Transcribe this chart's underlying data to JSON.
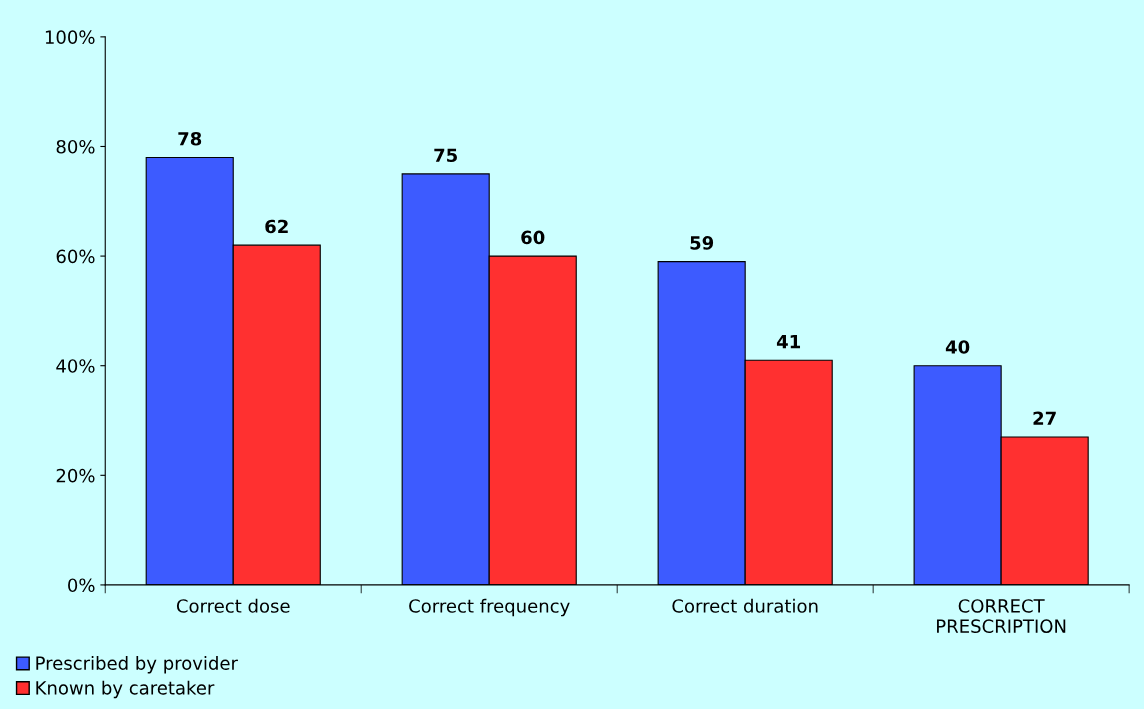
{
  "chart_data": {
    "type": "bar",
    "categories": [
      "Correct dose",
      "Correct frequency",
      "Correct duration",
      "CORRECT\nPRESCRIPTION"
    ],
    "series": [
      {
        "name": "Prescribed by provider",
        "color": "#3d5bff",
        "values": [
          78,
          75,
          59,
          40
        ]
      },
      {
        "name": "Known by caretaker",
        "color": "#ff3030",
        "values": [
          62,
          60,
          41,
          27
        ]
      }
    ],
    "ylim": [
      0,
      100
    ],
    "yticks": [
      {
        "value": 0,
        "label": "0%"
      },
      {
        "value": 20,
        "label": "20%"
      },
      {
        "value": 40,
        "label": "40%"
      },
      {
        "value": 60,
        "label": "60%"
      },
      {
        "value": 80,
        "label": "80%"
      },
      {
        "value": 100,
        "label": "100%"
      }
    ],
    "data_labels": true,
    "grid": false,
    "legend": "bottom left"
  }
}
